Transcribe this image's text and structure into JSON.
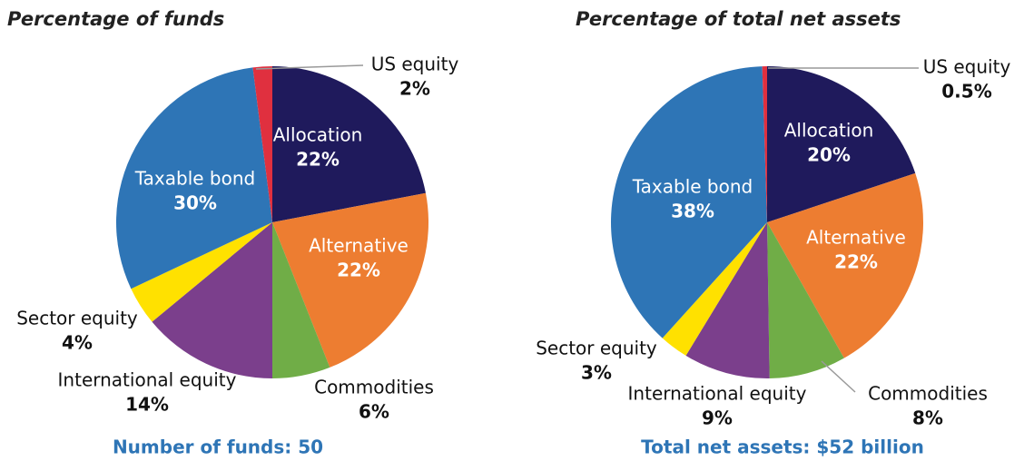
{
  "chart_data": [
    {
      "type": "pie",
      "title": "Percentage of funds",
      "caption": "Number of funds: 50",
      "categories": [
        "Allocation",
        "Alternative",
        "Commodities",
        "International equity",
        "Sector equity",
        "Taxable bond",
        "US equity"
      ],
      "values": [
        22,
        22,
        6,
        14,
        4,
        30,
        2
      ],
      "value_labels": [
        "22%",
        "22%",
        "6%",
        "14%",
        "4%",
        "30%",
        "2%"
      ],
      "colors": [
        "#1f1a5c",
        "#ed7d31",
        "#70ad47",
        "#7b3f8c",
        "#ffe100",
        "#2e75b6",
        "#e0303f"
      ]
    },
    {
      "type": "pie",
      "title": "Percentage of total net assets",
      "caption": "Total net assets: $52 billion",
      "categories": [
        "Allocation",
        "Alternative",
        "Commodities",
        "International equity",
        "Sector equity",
        "Taxable bond",
        "US equity"
      ],
      "values": [
        20,
        22,
        8,
        9,
        3,
        38,
        0.5
      ],
      "value_labels": [
        "20%",
        "22%",
        "8%",
        "9%",
        "3%",
        "38%",
        "0.5%"
      ],
      "colors": [
        "#1f1a5c",
        "#ed7d31",
        "#70ad47",
        "#7b3f8c",
        "#ffe100",
        "#2e75b6",
        "#e0303f"
      ]
    }
  ]
}
